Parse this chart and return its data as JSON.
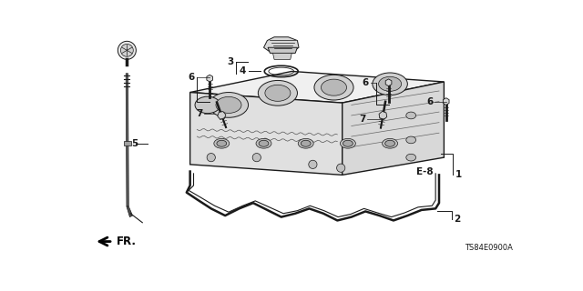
{
  "bg_color": "#ffffff",
  "line_color": "#1a1a1a",
  "diagram_code": "TS84E0900A",
  "lw_main": 1.0,
  "lw_thin": 0.5,
  "lw_med": 0.7
}
